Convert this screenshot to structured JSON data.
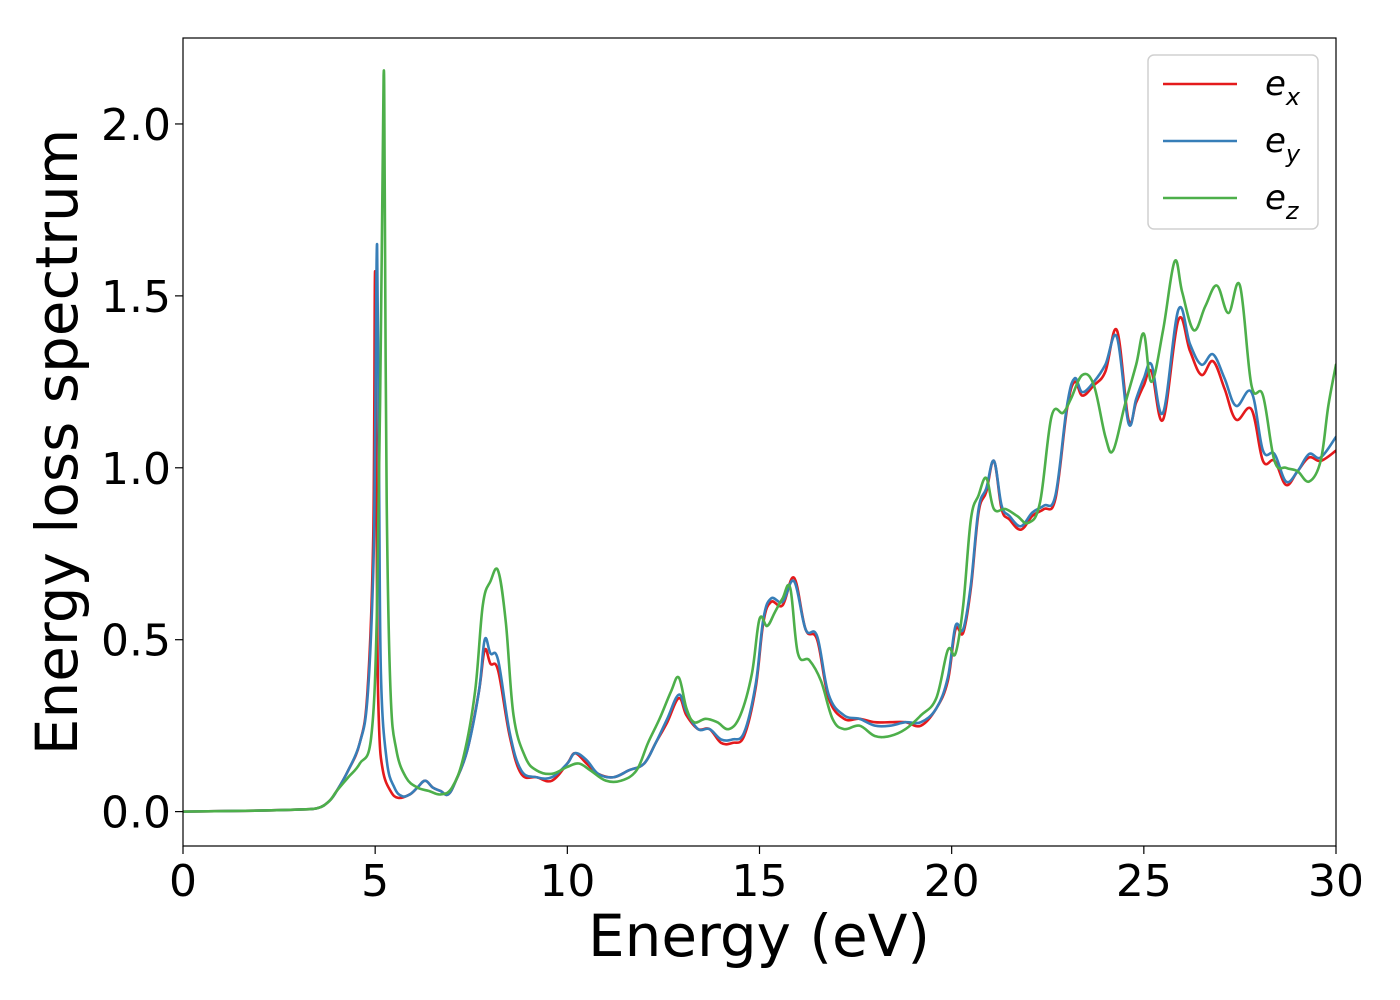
{
  "chart_data": {
    "type": "line",
    "title": "",
    "xlabel": "Energy (eV)",
    "ylabel": "Energy loss spectrum",
    "xlim": [
      0,
      30
    ],
    "ylim": [
      -0.1,
      2.25
    ],
    "xticks": [
      0,
      5,
      10,
      15,
      20,
      25,
      30
    ],
    "xtick_labels": [
      "0",
      "5",
      "10",
      "15",
      "20",
      "25",
      "30"
    ],
    "yticks": [
      0.0,
      0.5,
      1.0,
      1.5,
      2.0
    ],
    "ytick_labels": [
      "0.0",
      "0.5",
      "1.0",
      "1.5",
      "2.0"
    ],
    "grid": false,
    "legend_position": "top-right",
    "series": [
      {
        "name": "e_x",
        "label_base": "e",
        "label_sub": "x",
        "color": "#e41a1c",
        "x": [
          0,
          2,
          3,
          3.5,
          3.8,
          4.0,
          4.3,
          4.6,
          4.8,
          4.95,
          5.0,
          5.05,
          5.1,
          5.2,
          5.4,
          5.6,
          5.9,
          6.1,
          6.3,
          6.5,
          6.7,
          6.9,
          7.1,
          7.4,
          7.7,
          7.85,
          8.0,
          8.2,
          8.5,
          8.8,
          9.2,
          9.6,
          10.0,
          10.2,
          10.5,
          10.8,
          11.2,
          11.6,
          12.0,
          12.3,
          12.6,
          12.9,
          13.1,
          13.4,
          13.7,
          14.0,
          14.3,
          14.6,
          14.9,
          15.1,
          15.3,
          15.6,
          15.9,
          16.2,
          16.5,
          16.8,
          17.2,
          17.6,
          18.0,
          18.4,
          18.8,
          19.2,
          19.6,
          19.9,
          20.1,
          20.3,
          20.5,
          20.7,
          20.9,
          21.1,
          21.3,
          21.5,
          21.8,
          22.1,
          22.4,
          22.7,
          23.0,
          23.2,
          23.4,
          23.7,
          24.0,
          24.3,
          24.6,
          24.8,
          25.0,
          25.2,
          25.5,
          25.9,
          26.2,
          26.5,
          26.8,
          27.1,
          27.4,
          27.8,
          28.1,
          28.4,
          28.7,
          29.0,
          29.3,
          29.6,
          30.0
        ],
        "y": [
          0.0,
          0.003,
          0.006,
          0.01,
          0.03,
          0.06,
          0.12,
          0.2,
          0.35,
          0.8,
          1.57,
          0.6,
          0.25,
          0.12,
          0.06,
          0.04,
          0.05,
          0.07,
          0.09,
          0.07,
          0.06,
          0.05,
          0.09,
          0.18,
          0.35,
          0.47,
          0.43,
          0.41,
          0.22,
          0.11,
          0.1,
          0.09,
          0.14,
          0.17,
          0.14,
          0.11,
          0.1,
          0.12,
          0.14,
          0.2,
          0.26,
          0.33,
          0.28,
          0.24,
          0.24,
          0.2,
          0.2,
          0.22,
          0.36,
          0.55,
          0.61,
          0.6,
          0.68,
          0.53,
          0.5,
          0.33,
          0.27,
          0.27,
          0.26,
          0.26,
          0.26,
          0.25,
          0.3,
          0.38,
          0.53,
          0.52,
          0.65,
          0.87,
          0.93,
          1.02,
          0.88,
          0.85,
          0.82,
          0.86,
          0.88,
          0.91,
          1.17,
          1.25,
          1.21,
          1.24,
          1.28,
          1.4,
          1.14,
          1.19,
          1.24,
          1.28,
          1.14,
          1.43,
          1.34,
          1.27,
          1.31,
          1.23,
          1.14,
          1.17,
          1.02,
          1.02,
          0.95,
          0.99,
          1.03,
          1.02,
          1.05
        ]
      },
      {
        "name": "e_y",
        "label_base": "e",
        "label_sub": "y",
        "color": "#377eb8",
        "x": [
          0,
          2,
          3,
          3.5,
          3.8,
          4.0,
          4.3,
          4.6,
          4.8,
          4.95,
          5.0,
          5.05,
          5.1,
          5.15,
          5.3,
          5.5,
          5.7,
          5.9,
          6.1,
          6.3,
          6.5,
          6.7,
          6.9,
          7.1,
          7.4,
          7.7,
          7.85,
          8.0,
          8.2,
          8.5,
          8.8,
          9.2,
          9.6,
          10.0,
          10.2,
          10.5,
          10.8,
          11.2,
          11.6,
          12.0,
          12.3,
          12.6,
          12.9,
          13.1,
          13.4,
          13.7,
          14.0,
          14.3,
          14.6,
          14.9,
          15.1,
          15.3,
          15.6,
          15.9,
          16.2,
          16.5,
          16.8,
          17.2,
          17.6,
          18.0,
          18.4,
          18.8,
          19.2,
          19.6,
          19.9,
          20.1,
          20.3,
          20.5,
          20.7,
          20.9,
          21.1,
          21.3,
          21.5,
          21.8,
          22.1,
          22.4,
          22.7,
          23.0,
          23.2,
          23.4,
          23.7,
          24.0,
          24.3,
          24.6,
          24.8,
          25.0,
          25.2,
          25.5,
          25.9,
          26.2,
          26.5,
          26.8,
          27.1,
          27.4,
          27.8,
          28.1,
          28.4,
          28.7,
          29.0,
          29.3,
          29.6,
          30.0
        ],
        "y": [
          0.0,
          0.003,
          0.006,
          0.01,
          0.03,
          0.06,
          0.12,
          0.2,
          0.33,
          0.7,
          1.1,
          1.65,
          1.0,
          0.4,
          0.15,
          0.07,
          0.045,
          0.05,
          0.07,
          0.09,
          0.07,
          0.06,
          0.05,
          0.09,
          0.18,
          0.35,
          0.5,
          0.46,
          0.44,
          0.23,
          0.12,
          0.1,
          0.1,
          0.14,
          0.17,
          0.15,
          0.11,
          0.1,
          0.12,
          0.14,
          0.2,
          0.27,
          0.34,
          0.29,
          0.24,
          0.24,
          0.21,
          0.21,
          0.23,
          0.37,
          0.56,
          0.62,
          0.61,
          0.67,
          0.53,
          0.51,
          0.34,
          0.28,
          0.27,
          0.25,
          0.25,
          0.26,
          0.26,
          0.3,
          0.39,
          0.54,
          0.53,
          0.66,
          0.88,
          0.94,
          1.02,
          0.89,
          0.86,
          0.83,
          0.87,
          0.89,
          0.92,
          1.18,
          1.26,
          1.22,
          1.25,
          1.3,
          1.38,
          1.13,
          1.2,
          1.26,
          1.3,
          1.16,
          1.46,
          1.36,
          1.3,
          1.33,
          1.26,
          1.18,
          1.22,
          1.05,
          1.04,
          0.96,
          0.99,
          1.04,
          1.03,
          1.09
        ]
      },
      {
        "name": "e_z",
        "label_base": "e",
        "label_sub": "z",
        "color": "#4daf4a",
        "x": [
          0,
          2,
          3,
          3.5,
          3.8,
          4.0,
          4.3,
          4.6,
          4.9,
          5.05,
          5.15,
          5.22,
          5.25,
          5.3,
          5.4,
          5.55,
          5.8,
          6.1,
          6.4,
          6.7,
          7.0,
          7.3,
          7.6,
          7.8,
          8.0,
          8.2,
          8.4,
          8.6,
          8.9,
          9.2,
          9.6,
          10.0,
          10.3,
          10.6,
          11.0,
          11.4,
          11.8,
          12.1,
          12.4,
          12.7,
          12.9,
          13.1,
          13.3,
          13.6,
          13.9,
          14.2,
          14.5,
          14.8,
          15.0,
          15.2,
          15.4,
          15.6,
          15.8,
          16.0,
          16.3,
          16.6,
          16.9,
          17.2,
          17.6,
          18.0,
          18.4,
          18.8,
          19.2,
          19.6,
          19.9,
          20.1,
          20.3,
          20.5,
          20.7,
          20.9,
          21.1,
          21.4,
          21.7,
          22.0,
          22.3,
          22.6,
          22.9,
          23.1,
          23.4,
          23.7,
          24.0,
          24.2,
          24.5,
          24.8,
          25.0,
          25.2,
          25.5,
          25.8,
          26.0,
          26.3,
          26.6,
          26.9,
          27.2,
          27.5,
          27.8,
          28.1,
          28.4,
          28.7,
          29.0,
          29.3,
          29.6,
          29.8,
          30.0
        ],
        "y": [
          0.0,
          0.003,
          0.006,
          0.01,
          0.03,
          0.06,
          0.1,
          0.14,
          0.22,
          0.6,
          1.4,
          2.14,
          1.8,
          0.9,
          0.35,
          0.18,
          0.1,
          0.07,
          0.06,
          0.05,
          0.07,
          0.16,
          0.35,
          0.6,
          0.67,
          0.7,
          0.55,
          0.28,
          0.16,
          0.12,
          0.11,
          0.13,
          0.14,
          0.12,
          0.09,
          0.09,
          0.12,
          0.2,
          0.27,
          0.35,
          0.39,
          0.3,
          0.26,
          0.27,
          0.26,
          0.24,
          0.28,
          0.4,
          0.56,
          0.54,
          0.58,
          0.62,
          0.65,
          0.46,
          0.44,
          0.38,
          0.27,
          0.24,
          0.25,
          0.22,
          0.22,
          0.24,
          0.28,
          0.33,
          0.47,
          0.46,
          0.6,
          0.85,
          0.92,
          0.97,
          0.88,
          0.88,
          0.86,
          0.84,
          0.9,
          1.15,
          1.16,
          1.2,
          1.27,
          1.24,
          1.09,
          1.05,
          1.18,
          1.3,
          1.39,
          1.25,
          1.4,
          1.6,
          1.51,
          1.4,
          1.47,
          1.53,
          1.45,
          1.53,
          1.24,
          1.21,
          1.02,
          1.0,
          0.99,
          0.96,
          1.02,
          1.18,
          1.3
        ]
      }
    ]
  }
}
